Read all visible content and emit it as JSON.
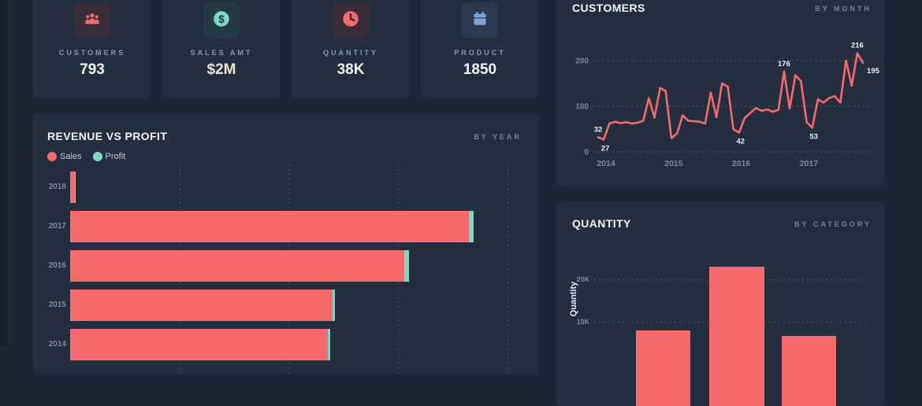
{
  "kpi_cards": [
    {
      "label": "CUSTOMERS",
      "value": "793",
      "icon": "people-icon",
      "tile": "tile-red",
      "value_color": "#f2f4f6"
    },
    {
      "label": "SALES AMT",
      "value": "$2M",
      "icon": "dollar-icon",
      "tile": "tile-teal",
      "value_color": "#ece5cd"
    },
    {
      "label": "QUANTITY",
      "value": "38K",
      "icon": "clock-icon",
      "tile": "tile-red",
      "value_color": "#f2f4f6"
    },
    {
      "label": "PRODUCT",
      "value": "1850",
      "icon": "calendar-icon",
      "tile": "tile-blue",
      "value_color": "#f2f4f6"
    }
  ],
  "panels": {
    "revenue": {
      "title": "REVENUE VS PROFIT",
      "subtitle": "BY YEAR"
    },
    "customers": {
      "title": "CUSTOMERS",
      "subtitle": "BY MONTH"
    },
    "quantity": {
      "title": "QUANTITY",
      "subtitle": "BY CATEGORY"
    }
  },
  "chart_data": [
    {
      "id": "revenue_vs_profit",
      "type": "bar",
      "orientation": "horizontal",
      "title": "REVENUE VS PROFIT",
      "subtitle": "BY YEAR",
      "categories": [
        "2018",
        "2017",
        "2016",
        "2015",
        "2014"
      ],
      "series": [
        {
          "name": "Sales",
          "color": "#f8696c",
          "values": [
            7500,
            632500,
            530000,
            416000,
            409000
          ]
        },
        {
          "name": "Profit",
          "color": "#7fd8c6",
          "values": [
            1500,
            7500,
            7500,
            4000,
            4000
          ]
        }
      ],
      "xlim": [
        0,
        731250
      ],
      "grid": "vertical-dotted",
      "legend_position": "top-left"
    },
    {
      "id": "customers_by_month",
      "type": "line",
      "title": "CUSTOMERS",
      "subtitle": "BY MONTH",
      "color": "#f8696c",
      "x_tick_labels": [
        "2014",
        "2015",
        "2016",
        "2017"
      ],
      "months_per_tick": 12,
      "y_ticks": [
        0,
        100,
        200
      ],
      "ylim": [
        0,
        240
      ],
      "values": [
        32,
        27,
        62,
        66,
        63,
        65,
        62,
        64,
        68,
        118,
        75,
        140,
        133,
        30,
        40,
        80,
        68,
        67,
        66,
        62,
        130,
        76,
        150,
        143,
        50,
        42,
        74,
        85,
        96,
        90,
        93,
        88,
        92,
        176,
        95,
        168,
        155,
        65,
        53,
        115,
        108,
        118,
        122,
        108,
        200,
        145,
        216,
        195
      ],
      "point_labels": [
        {
          "index": 0,
          "text": "32",
          "position": "above"
        },
        {
          "index": 1,
          "text": "27",
          "position": "below"
        },
        {
          "index": 25,
          "text": "42",
          "position": "below"
        },
        {
          "index": 33,
          "text": "176",
          "position": "above"
        },
        {
          "index": 38,
          "text": "53",
          "position": "below"
        },
        {
          "index": 46,
          "text": "216",
          "position": "above"
        },
        {
          "index": 47,
          "text": "195",
          "position": "end"
        }
      ],
      "grid": "horizontal-dotted"
    },
    {
      "id": "quantity_by_category",
      "type": "bar",
      "orientation": "vertical",
      "title": "QUANTITY",
      "subtitle": "BY CATEGORY",
      "ylabel": "Quantity",
      "color": "#f8696c",
      "values": [
        8000,
        23000,
        6600
      ],
      "y_ticks": [
        {
          "value": 10000,
          "label": "10K"
        },
        {
          "value": 20000,
          "label": "20K"
        }
      ],
      "grid": "horizontal-dotted"
    }
  ],
  "colors": {
    "background": "#1d2634",
    "panel": "#232e3f",
    "accent_red": "#f8696c",
    "accent_teal": "#7fd8c6",
    "accent_blue": "#7ea3d8",
    "text_muted": "#8b96a9",
    "text_bright": "#f2f4f6",
    "gridline": "#5a6880"
  }
}
